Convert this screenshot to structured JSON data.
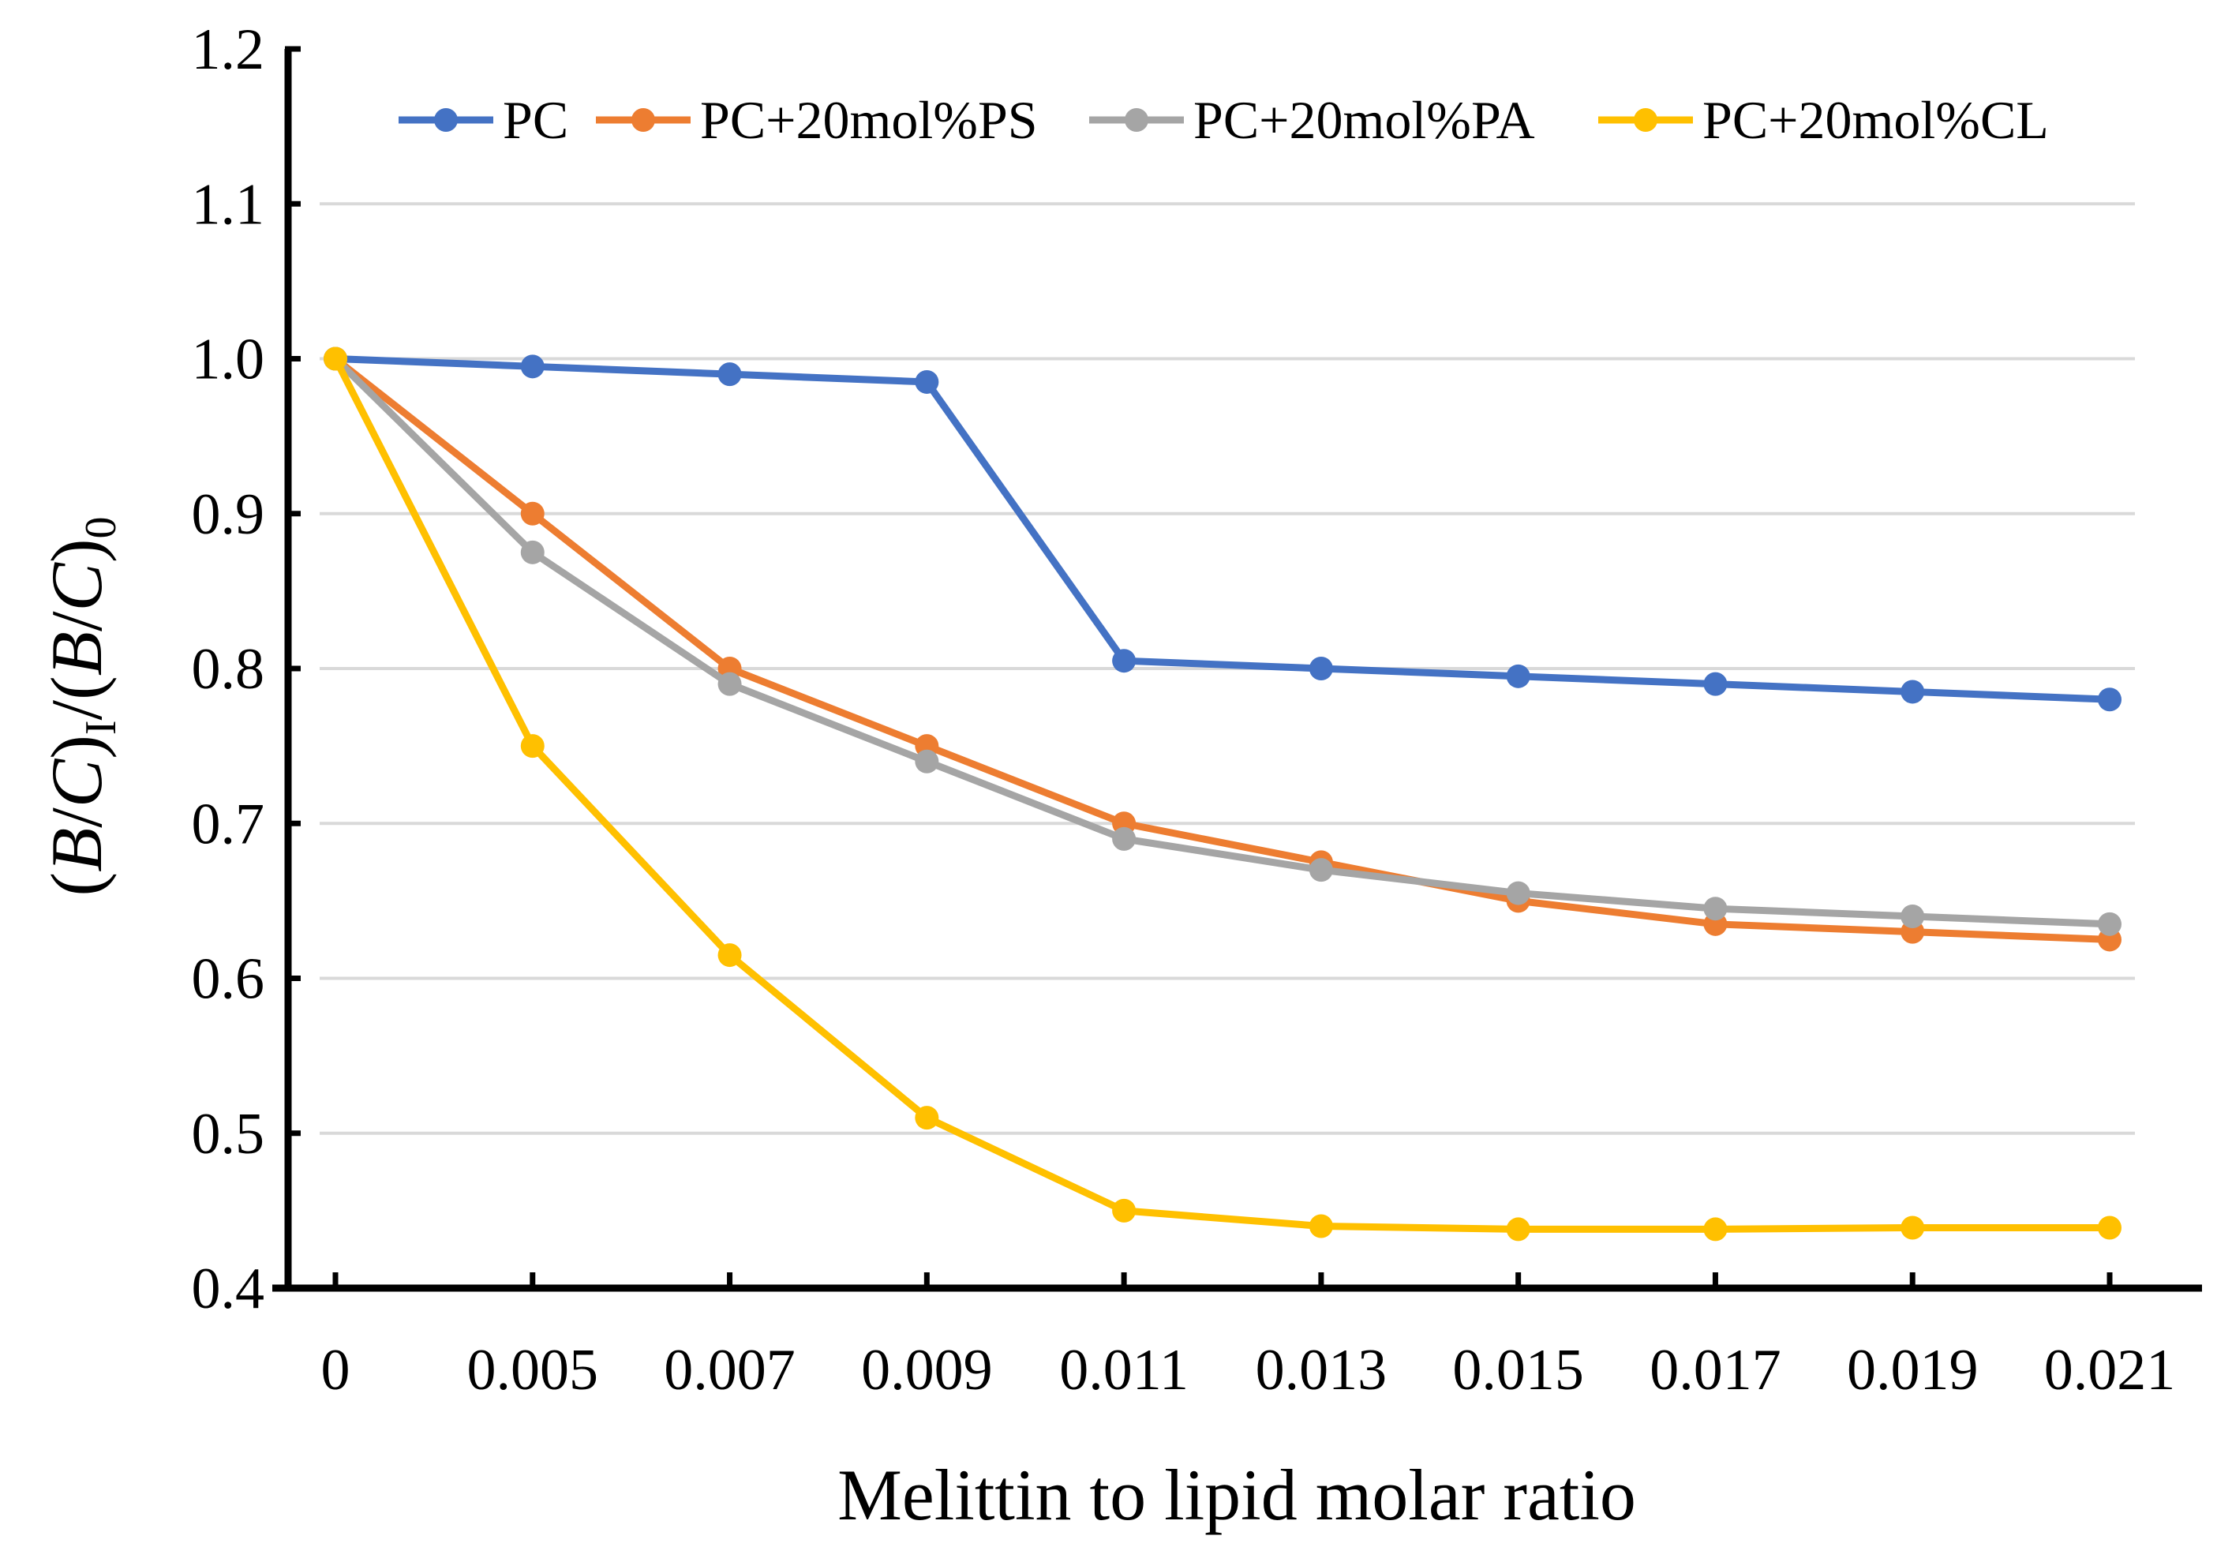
{
  "chart_data": {
    "type": "line",
    "title": "",
    "xlabel": "Melittin to lipid molar ratio",
    "ylabel": {
      "open": "(",
      "b1": "B",
      "slash1": "/",
      "c1": "C",
      "close1": ")",
      "sub1": "I",
      "slash_mid": "/(",
      "b2": "B",
      "slash2": "/",
      "c2": "C",
      "close2": ")",
      "sub2": "0"
    },
    "categories": [
      "0",
      "0.005",
      "0.007",
      "0.009",
      "0.011",
      "0.013",
      "0.015",
      "0.017",
      "0.019",
      "0.021"
    ],
    "yticks": [
      "0.4",
      "0.5",
      "0.6",
      "0.7",
      "0.8",
      "0.9",
      "1.0",
      "1.1",
      "1.2"
    ],
    "ylim": [
      0.4,
      1.2
    ],
    "grid": true,
    "legend_position": "top",
    "series": [
      {
        "name": "PC",
        "color": "#4472c4",
        "values": [
          1.0,
          0.995,
          0.99,
          0.985,
          0.805,
          0.8,
          0.795,
          0.79,
          0.785,
          0.78
        ]
      },
      {
        "name": "PC+20mol%PS",
        "color": "#ed7d31",
        "values": [
          1.0,
          0.9,
          0.8,
          0.75,
          0.7,
          0.675,
          0.65,
          0.635,
          0.63,
          0.625
        ]
      },
      {
        "name": "PC+20mol%PA",
        "color": "#a5a5a5",
        "values": [
          1.0,
          0.875,
          0.79,
          0.74,
          0.69,
          0.67,
          0.655,
          0.645,
          0.64,
          0.635
        ]
      },
      {
        "name": "PC+20mol%CL",
        "color": "#ffc000",
        "values": [
          1.0,
          0.75,
          0.615,
          0.51,
          0.45,
          0.44,
          0.438,
          0.438,
          0.439,
          0.439
        ]
      }
    ]
  }
}
